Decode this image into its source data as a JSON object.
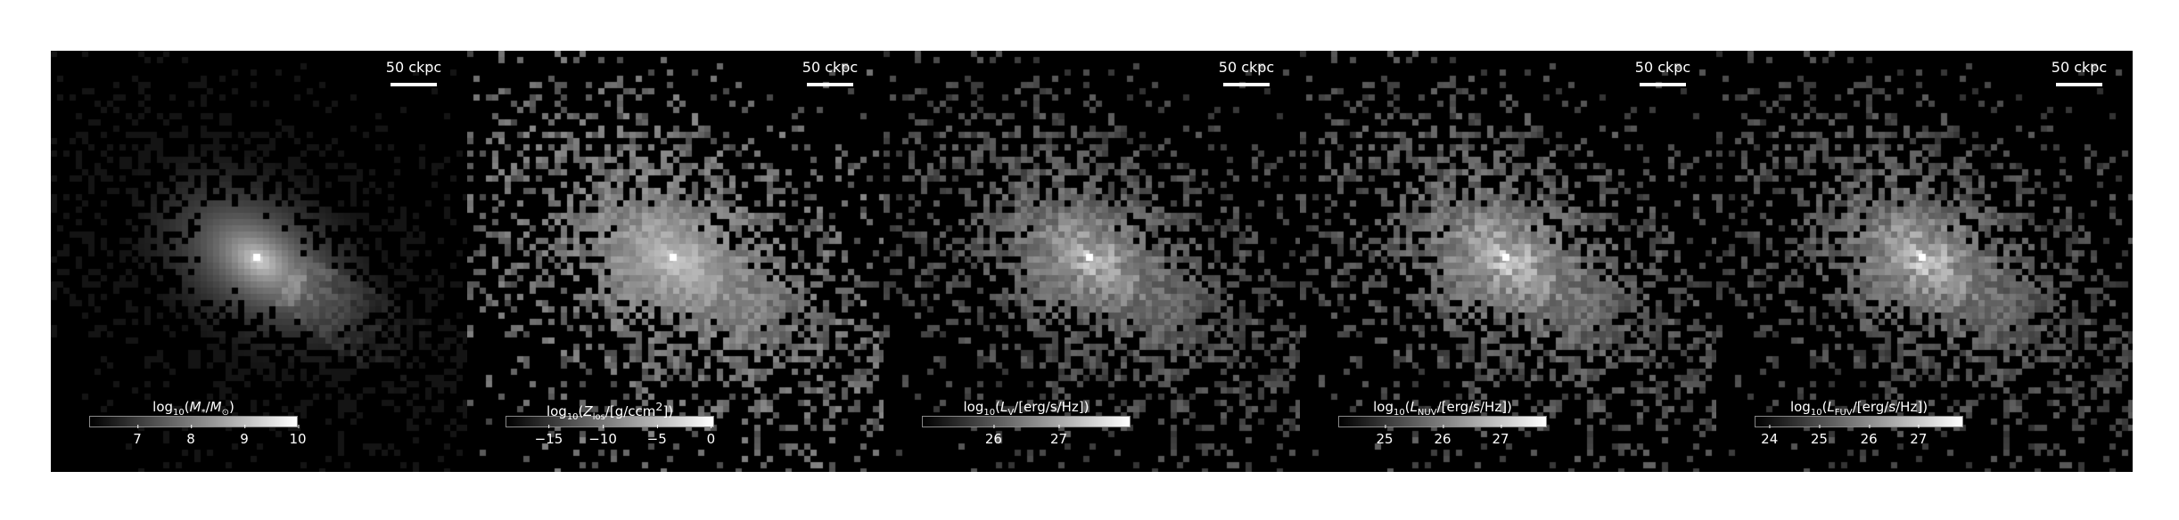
{
  "figure": {
    "panels": [
      {
        "name": "stellar-mass",
        "scalebar": "50 ckpc",
        "colorbar": {
          "label_html": "log<sub>10</sub>(<i>M</i><sub>*</sub>/<i>M</i><sub>⊙</sub>)",
          "min": 6.1,
          "max": 10,
          "ticks": [
            "7",
            "8",
            "9",
            "10"
          ],
          "tick_values": [
            7,
            8,
            9,
            10
          ]
        }
      },
      {
        "name": "metal-column",
        "scalebar": "50 ckpc",
        "colorbar": {
          "label_html": "log<sub>10</sub>(<i>Z</i><sub>los</sub>/[g/ccm<sup>2</sup>])",
          "min": -19,
          "max": 0.3,
          "ticks": [
            "−15",
            "−10",
            "−5",
            "0"
          ],
          "tick_values": [
            -15,
            -10,
            -5,
            0
          ]
        }
      },
      {
        "name": "v-band-luminosity",
        "scalebar": "50 ckpc",
        "colorbar": {
          "label_html": "log<sub>10</sub>(<i>L</i><sub>V</sub>/[erg/s/Hz])",
          "min": 24.9,
          "max": 28.1,
          "ticks": [
            "26",
            "27"
          ],
          "tick_values": [
            26,
            27
          ]
        }
      },
      {
        "name": "nuv-luminosity",
        "scalebar": "50 ckpc",
        "colorbar": {
          "label_html": "log<sub>10</sub>(<i>L</i><sub>NUV</sub>/[erg/s/Hz])",
          "min": 24.2,
          "max": 27.8,
          "ticks": [
            "25",
            "26",
            "27"
          ],
          "tick_values": [
            25,
            26,
            27
          ]
        }
      },
      {
        "name": "fuv-luminosity",
        "scalebar": "50 ckpc",
        "colorbar": {
          "label_html": "log<sub>10</sub>(<i>L</i><sub>FUV</sub>/[erg/s/Hz])",
          "min": 23.7,
          "max": 27.9,
          "ticks": [
            "24",
            "25",
            "26",
            "27"
          ],
          "tick_values": [
            24,
            25,
            26,
            27
          ]
        }
      }
    ]
  }
}
